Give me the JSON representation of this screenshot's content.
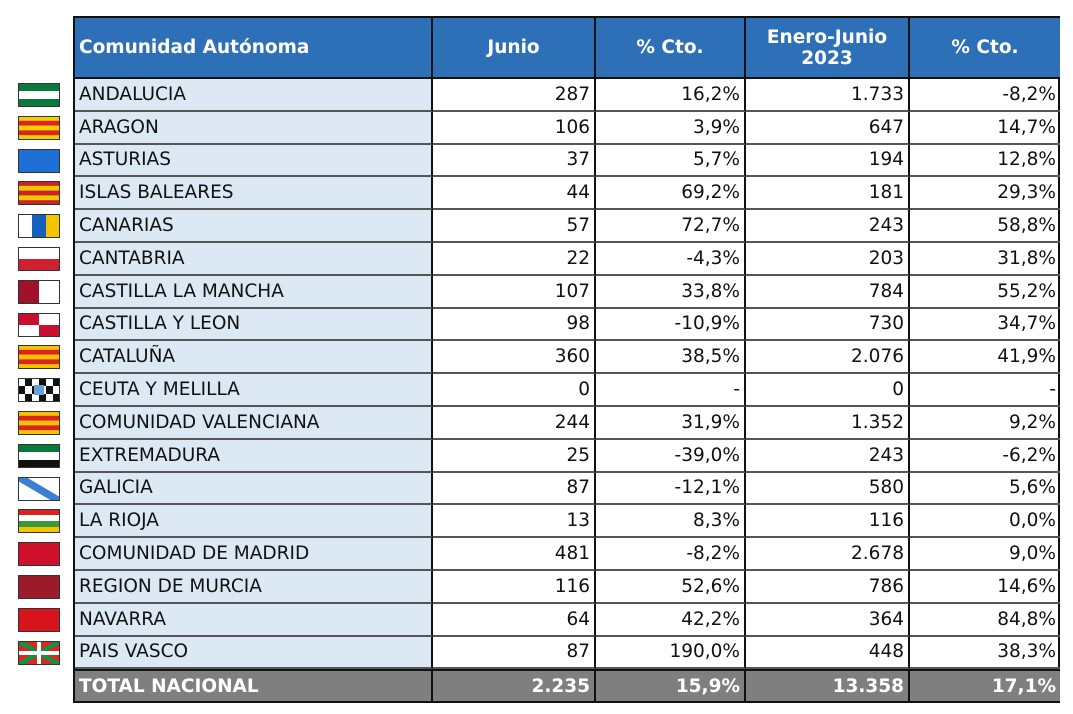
{
  "table": {
    "header": [
      "Comunidad Autónoma",
      "Junio",
      "% Cto.",
      "Enero-Junio 2023",
      "% Cto."
    ],
    "rows": [
      [
        "ANDALUCIA",
        "287",
        "16,2%",
        "1.733",
        "-8,2%"
      ],
      [
        "ARAGON",
        "106",
        "3,9%",
        "647",
        "14,7%"
      ],
      [
        "ASTURIAS",
        "37",
        "5,7%",
        "194",
        "12,8%"
      ],
      [
        "ISLAS BALEARES",
        "44",
        "69,2%",
        "181",
        "29,3%"
      ],
      [
        "CANARIAS",
        "57",
        "72,7%",
        "243",
        "58,8%"
      ],
      [
        "CANTABRIA",
        "22",
        "-4,3%",
        "203",
        "31,8%"
      ],
      [
        "CASTILLA  LA MANCHA",
        "107",
        "33,8%",
        "784",
        "55,2%"
      ],
      [
        "CASTILLA Y LEON",
        "98",
        "-10,9%",
        "730",
        "34,7%"
      ],
      [
        "CATALUÑA",
        "360",
        "38,5%",
        "2.076",
        "41,9%"
      ],
      [
        "CEUTA Y MELILLA",
        "0",
        "-",
        "0",
        "-"
      ],
      [
        "COMUNIDAD VALENCIANA",
        "244",
        "31,9%",
        "1.352",
        "9,2%"
      ],
      [
        "EXTREMADURA",
        "25",
        "-39,0%",
        "243",
        "-6,2%"
      ],
      [
        "GALICIA",
        "87",
        "-12,1%",
        "580",
        "5,6%"
      ],
      [
        "LA RIOJA",
        "13",
        "8,3%",
        "116",
        "0,0%"
      ],
      [
        "COMUNIDAD DE MADRID",
        "481",
        "-8,2%",
        "2.678",
        "9,0%"
      ],
      [
        "REGION DE MURCIA",
        "116",
        "52,6%",
        "786",
        "14,6%"
      ],
      [
        "NAVARRA",
        "64",
        "42,2%",
        "364",
        "84,8%"
      ],
      [
        "PAIS VASCO",
        "87",
        "190,0%",
        "448",
        "38,3%"
      ]
    ],
    "total": [
      "TOTAL NACIONAL",
      "2.235",
      "15,9%",
      "13.358",
      "17,1%"
    ]
  }
}
